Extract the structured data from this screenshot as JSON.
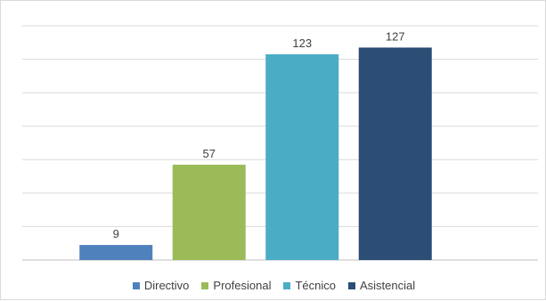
{
  "chart_data": {
    "type": "bar",
    "categories": [
      "Directivo",
      "Profesional",
      "Técnico",
      "Asistencial"
    ],
    "values": [
      9,
      57,
      123,
      127
    ],
    "colors": [
      "#4f81bd",
      "#9bbb59",
      "#4bacc6",
      "#2c4d75"
    ],
    "title": "",
    "xlabel": "",
    "ylabel": "",
    "ylim": [
      0,
      140
    ],
    "grid": true,
    "legend_position": "bottom"
  }
}
